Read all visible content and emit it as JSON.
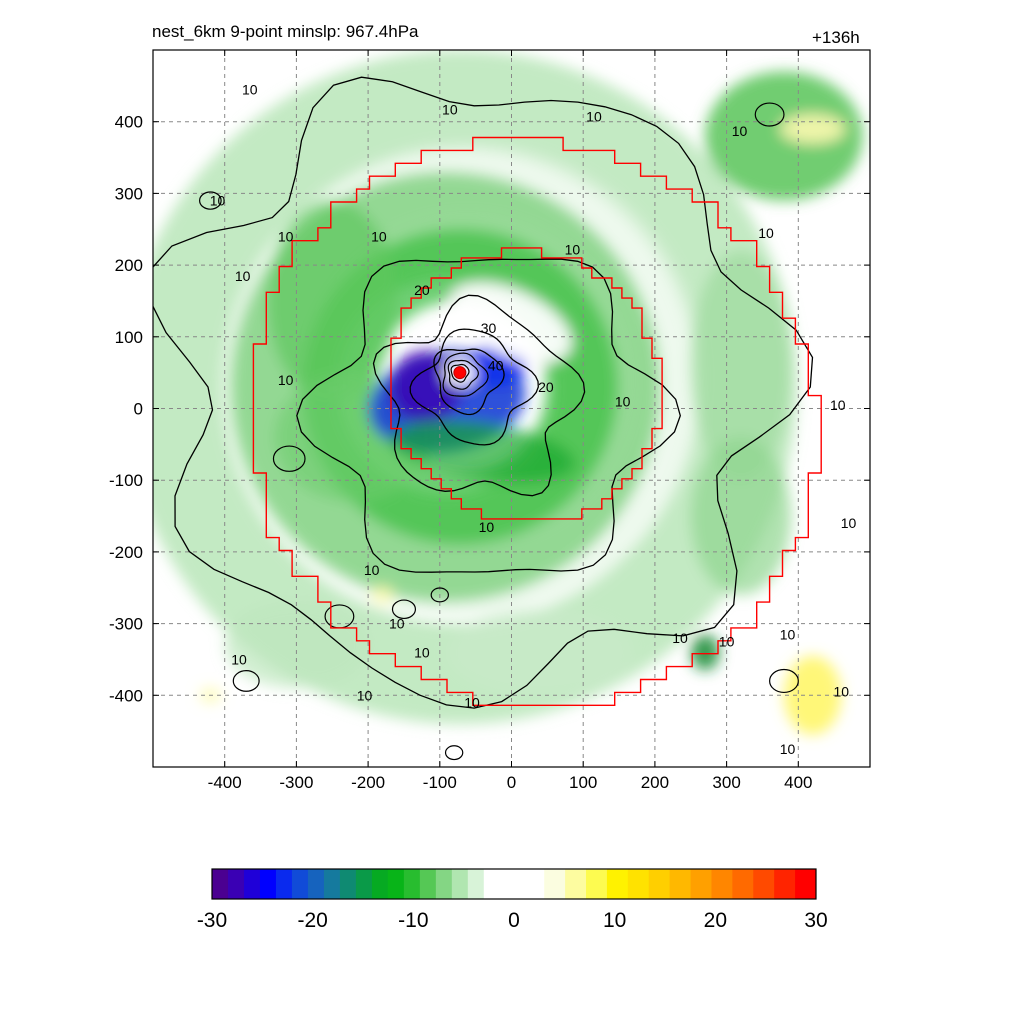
{
  "header": {
    "title": "nest_6km  9-point minslp: 967.4hPa",
    "forecast_hour": "+136h"
  },
  "chart_data": {
    "type": "heatmap",
    "description_field": "filled contour field with black contour lines, red boundary outlines and storm center marker",
    "xlim": [
      -500,
      500
    ],
    "ylim": [
      -500,
      500
    ],
    "xticks": [
      -400,
      -300,
      -200,
      -100,
      0,
      100,
      200,
      300,
      400
    ],
    "yticks": [
      -400,
      -300,
      -200,
      -100,
      0,
      100,
      200,
      300,
      400
    ],
    "grid": true,
    "colorbar": {
      "min": -30,
      "max": 30,
      "ticks": [
        -30,
        -20,
        -10,
        0,
        10,
        20,
        30
      ],
      "white_band": [
        -3,
        3
      ],
      "colors_negative": [
        "#4b0091",
        "#3a00b4",
        "#1f00d8",
        "#0000ff",
        "#0a2aee",
        "#114bd8",
        "#1663be",
        "#157a9e",
        "#0f8a72",
        "#0a9a48",
        "#06aa22",
        "#08b418",
        "#28bd2f",
        "#55c855",
        "#84d684",
        "#b0e6b0",
        "#d8f3d8"
      ],
      "colors_positive": [
        "#fbfde0",
        "#fdfca0",
        "#fdfb50",
        "#fff200",
        "#ffe200",
        "#ffcf00",
        "#ffb800",
        "#ffa000",
        "#ff8600",
        "#ff6a00",
        "#ff4a00",
        "#ff2400",
        "#ff0000"
      ],
      "legend_position": "bottom"
    },
    "contour_labels": [
      {
        "text": "10",
        "x": -365,
        "y": 445
      },
      {
        "text": "10",
        "x": -86,
        "y": 417
      },
      {
        "text": "10",
        "x": 115,
        "y": 407
      },
      {
        "text": "10",
        "x": 318,
        "y": 387
      },
      {
        "text": "10",
        "x": -410,
        "y": 290
      },
      {
        "text": "10",
        "x": -315,
        "y": 240
      },
      {
        "text": "10",
        "x": -185,
        "y": 240
      },
      {
        "text": "10",
        "x": 85,
        "y": 222
      },
      {
        "text": "10",
        "x": 355,
        "y": 245
      },
      {
        "text": "10",
        "x": -375,
        "y": 185
      },
      {
        "text": "20",
        "x": -125,
        "y": 165
      },
      {
        "text": "30",
        "x": -32,
        "y": 112
      },
      {
        "text": "40",
        "x": -22,
        "y": 60
      },
      {
        "text": "20",
        "x": 48,
        "y": 30
      },
      {
        "text": "10",
        "x": 155,
        "y": 10
      },
      {
        "text": "10",
        "x": -315,
        "y": 40
      },
      {
        "text": "10",
        "x": 455,
        "y": 5
      },
      {
        "text": "10",
        "x": 470,
        "y": -160
      },
      {
        "text": "10",
        "x": -35,
        "y": -165
      },
      {
        "text": "10",
        "x": -195,
        "y": -225
      },
      {
        "text": "10",
        "x": -160,
        "y": -300
      },
      {
        "text": "10",
        "x": -125,
        "y": -340
      },
      {
        "text": "10",
        "x": -380,
        "y": -350
      },
      {
        "text": "10",
        "x": -205,
        "y": -400
      },
      {
        "text": "10",
        "x": -55,
        "y": -410
      },
      {
        "text": "10",
        "x": 235,
        "y": -320
      },
      {
        "text": "10",
        "x": 300,
        "y": -325
      },
      {
        "text": "10",
        "x": 385,
        "y": -315
      },
      {
        "text": "10",
        "x": 460,
        "y": -395
      },
      {
        "text": "10",
        "x": 385,
        "y": -475
      }
    ],
    "storm_center": {
      "x": -72,
      "y": 50,
      "color": "#ff0000"
    },
    "boundary_color": "#ff0000",
    "contour_color": "#000000"
  }
}
